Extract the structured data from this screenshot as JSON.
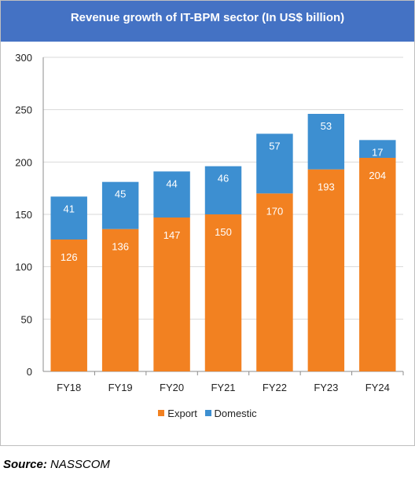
{
  "chart_data": {
    "type": "bar",
    "stacked": true,
    "title": "Revenue growth of IT-BPM sector (In US$ billion)",
    "categories": [
      "FY18",
      "FY19",
      "FY20",
      "FY21",
      "FY22",
      "FY23",
      "FY24"
    ],
    "series": [
      {
        "name": "Export",
        "color": "#f28121",
        "values": [
          126,
          136,
          147,
          150,
          170,
          193,
          204
        ]
      },
      {
        "name": "Domestic",
        "color": "#3d8fd1",
        "values": [
          41,
          45,
          44,
          46,
          57,
          53,
          17
        ]
      }
    ],
    "yticks": [
      0,
      50,
      100,
      150,
      200,
      250,
      300
    ],
    "ylim": [
      0,
      300
    ],
    "grid": true,
    "legend": "bottom"
  },
  "source": {
    "label": "Source:",
    "value": "NASSCOM"
  }
}
